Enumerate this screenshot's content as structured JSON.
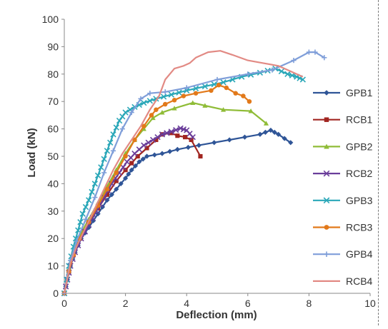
{
  "chart_data": {
    "type": "line",
    "title": "",
    "xlabel": "Deflection (mm)",
    "ylabel": "Load (kN)",
    "xlim": [
      0,
      10
    ],
    "ylim": [
      0,
      100
    ],
    "xticks": [
      "0",
      "2",
      "4",
      "6",
      "8",
      "10"
    ],
    "yticks": [
      "0",
      "10",
      "20",
      "30",
      "40",
      "50",
      "60",
      "70",
      "80",
      "90",
      "100"
    ],
    "grid": false,
    "legend_position": "right",
    "series": [
      {
        "name": "GPB1",
        "color": "#2f5597",
        "marker": "diamond",
        "markers_dense": true,
        "points": [
          [
            0,
            0
          ],
          [
            0.1,
            5
          ],
          [
            0.2,
            10
          ],
          [
            0.35,
            15
          ],
          [
            0.55,
            20
          ],
          [
            0.8,
            24
          ],
          [
            1.1,
            29
          ],
          [
            1.4,
            34
          ],
          [
            1.7,
            38
          ],
          [
            2.0,
            42
          ],
          [
            2.2,
            45
          ],
          [
            2.45,
            48
          ],
          [
            2.7,
            50
          ],
          [
            3.2,
            51
          ],
          [
            3.7,
            52.5
          ],
          [
            4.4,
            54
          ],
          [
            5.4,
            56
          ],
          [
            6.4,
            58
          ],
          [
            6.75,
            59.5
          ],
          [
            7.0,
            58
          ],
          [
            7.4,
            55
          ]
        ]
      },
      {
        "name": "RCB1",
        "color": "#a12520",
        "marker": "square",
        "markers_dense": false,
        "points": [
          [
            0,
            0
          ],
          [
            0.15,
            8
          ],
          [
            0.3,
            14
          ],
          [
            0.5,
            20
          ],
          [
            0.8,
            26
          ],
          [
            1.1,
            31
          ],
          [
            1.4,
            36
          ],
          [
            1.7,
            41
          ],
          [
            2.0,
            45
          ],
          [
            2.2,
            47.5
          ],
          [
            2.4,
            50
          ],
          [
            2.7,
            53
          ],
          [
            3.0,
            56
          ],
          [
            3.2,
            58
          ],
          [
            3.5,
            58.5
          ],
          [
            3.7,
            57.5
          ],
          [
            3.95,
            57
          ],
          [
            4.15,
            56
          ],
          [
            4.45,
            50
          ]
        ]
      },
      {
        "name": "GPB2",
        "color": "#8fbc37",
        "marker": "triangle",
        "markers_dense": false,
        "points": [
          [
            0,
            0
          ],
          [
            0.15,
            9
          ],
          [
            0.3,
            15
          ],
          [
            0.5,
            21
          ],
          [
            0.8,
            27
          ],
          [
            1.1,
            33
          ],
          [
            1.4,
            39
          ],
          [
            1.7,
            45
          ],
          [
            2.0,
            51
          ],
          [
            2.3,
            56
          ],
          [
            2.6,
            60
          ],
          [
            2.9,
            64
          ],
          [
            3.2,
            66
          ],
          [
            3.6,
            67.5
          ],
          [
            4.2,
            69.5
          ],
          [
            4.6,
            68.5
          ],
          [
            5.2,
            67
          ],
          [
            6.1,
            66.5
          ],
          [
            6.6,
            62
          ]
        ]
      },
      {
        "name": "RCB2",
        "color": "#6a3d9a",
        "marker": "x",
        "markers_dense": true,
        "points": [
          [
            0,
            0
          ],
          [
            0.1,
            5
          ],
          [
            0.2,
            10
          ],
          [
            0.35,
            15
          ],
          [
            0.55,
            20
          ],
          [
            0.8,
            25
          ],
          [
            1.05,
            30
          ],
          [
            1.3,
            35
          ],
          [
            1.55,
            40
          ],
          [
            1.8,
            44
          ],
          [
            2.05,
            48
          ],
          [
            2.3,
            51
          ],
          [
            2.6,
            54
          ],
          [
            2.9,
            56
          ],
          [
            3.2,
            58
          ],
          [
            3.5,
            59
          ],
          [
            3.8,
            60.2
          ],
          [
            4.0,
            59.5
          ],
          [
            4.2,
            57
          ]
        ]
      },
      {
        "name": "GPB3",
        "color": "#2aa7b8",
        "marker": "x",
        "markers_dense": true,
        "points": [
          [
            0,
            0
          ],
          [
            0.15,
            10
          ],
          [
            0.3,
            17
          ],
          [
            0.45,
            23
          ],
          [
            0.6,
            29
          ],
          [
            0.8,
            34
          ],
          [
            1.0,
            40
          ],
          [
            1.2,
            46
          ],
          [
            1.4,
            52
          ],
          [
            1.6,
            58
          ],
          [
            1.8,
            63
          ],
          [
            2.0,
            66
          ],
          [
            2.3,
            68
          ],
          [
            2.6,
            69.5
          ],
          [
            3.0,
            71
          ],
          [
            3.5,
            72.5
          ],
          [
            4.0,
            74
          ],
          [
            4.6,
            75.5
          ],
          [
            5.2,
            77
          ],
          [
            5.8,
            79
          ],
          [
            6.4,
            80.5
          ],
          [
            6.9,
            82
          ],
          [
            7.3,
            80
          ],
          [
            7.6,
            79
          ],
          [
            7.8,
            78
          ]
        ]
      },
      {
        "name": "RCB3",
        "color": "#e2791a",
        "marker": "circle",
        "markers_dense": false,
        "points": [
          [
            0,
            0
          ],
          [
            0.15,
            8
          ],
          [
            0.3,
            14
          ],
          [
            0.5,
            20
          ],
          [
            0.8,
            26
          ],
          [
            1.1,
            32
          ],
          [
            1.4,
            38
          ],
          [
            1.7,
            44
          ],
          [
            2.0,
            50
          ],
          [
            2.3,
            56
          ],
          [
            2.6,
            61
          ],
          [
            2.85,
            65
          ],
          [
            3.0,
            67
          ],
          [
            3.3,
            69
          ],
          [
            3.6,
            70.5
          ],
          [
            3.9,
            72
          ],
          [
            4.3,
            73
          ],
          [
            4.8,
            74
          ],
          [
            5.05,
            76
          ],
          [
            5.3,
            75
          ],
          [
            5.6,
            73
          ],
          [
            5.85,
            72
          ],
          [
            6.05,
            70
          ]
        ]
      },
      {
        "name": "GPB4",
        "color": "#7f9ed9",
        "marker": "plus",
        "markers_dense": false,
        "points": [
          [
            0,
            0
          ],
          [
            0.2,
            12
          ],
          [
            0.4,
            19
          ],
          [
            0.7,
            27
          ],
          [
            1.0,
            35
          ],
          [
            1.3,
            44
          ],
          [
            1.6,
            52
          ],
          [
            1.9,
            60
          ],
          [
            2.2,
            66
          ],
          [
            2.5,
            71
          ],
          [
            2.8,
            73
          ],
          [
            3.3,
            73.5
          ],
          [
            4.0,
            75
          ],
          [
            5.0,
            78
          ],
          [
            6.0,
            80
          ],
          [
            6.8,
            81.5
          ],
          [
            7.5,
            85
          ],
          [
            8.0,
            88
          ],
          [
            8.2,
            88
          ],
          [
            8.5,
            86
          ]
        ]
      },
      {
        "name": "RCB4",
        "color": "#e28a84",
        "marker": "none",
        "markers_dense": false,
        "points": [
          [
            0,
            0
          ],
          [
            0.2,
            11
          ],
          [
            0.4,
            17
          ],
          [
            0.7,
            24
          ],
          [
            1.0,
            31
          ],
          [
            1.3,
            38
          ],
          [
            1.6,
            45
          ],
          [
            1.9,
            51
          ],
          [
            2.2,
            56
          ],
          [
            2.5,
            61
          ],
          [
            2.8,
            67
          ],
          [
            3.1,
            72
          ],
          [
            3.3,
            78
          ],
          [
            3.6,
            82
          ],
          [
            3.9,
            83
          ],
          [
            4.1,
            84
          ],
          [
            4.3,
            86
          ],
          [
            4.7,
            88
          ],
          [
            5.1,
            88.5
          ],
          [
            5.5,
            87
          ],
          [
            6.0,
            85
          ],
          [
            6.5,
            84
          ],
          [
            7.0,
            83
          ],
          [
            7.5,
            80.5
          ],
          [
            7.8,
            79
          ]
        ]
      }
    ]
  }
}
